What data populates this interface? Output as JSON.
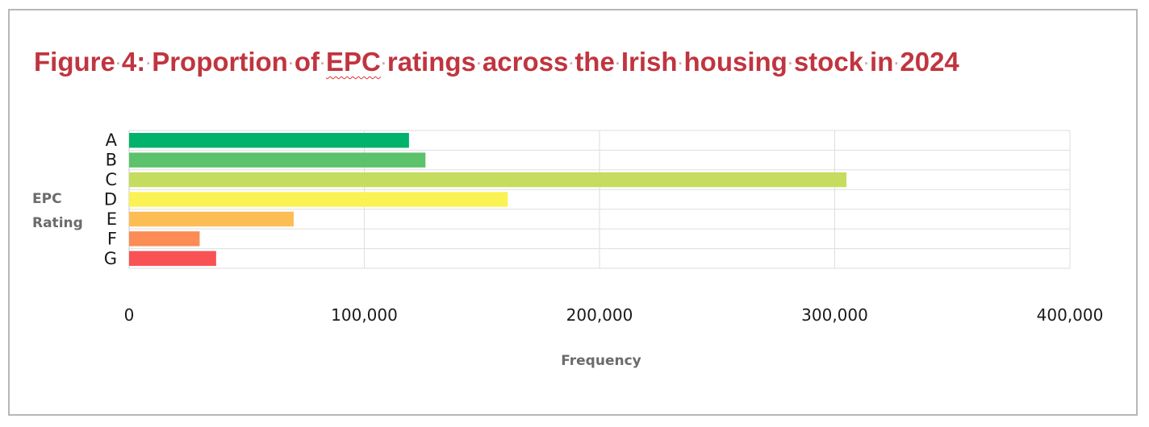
{
  "figure": {
    "title_words": [
      "Figure",
      "4:",
      "Proportion",
      "of",
      "EPC",
      "ratings",
      "across",
      "the",
      "Irish",
      "housing",
      "stock",
      "in",
      "2024"
    ]
  },
  "chart_data": {
    "type": "bar",
    "orientation": "horizontal",
    "title": "Figure 4: Proportion of EPC ratings across the Irish housing stock in 2024",
    "categories": [
      "A",
      "B",
      "C",
      "D",
      "E",
      "F",
      "G"
    ],
    "values": [
      119000,
      126000,
      305000,
      161000,
      70000,
      30000,
      37000
    ],
    "colors": [
      "#00b26b",
      "#5cc26c",
      "#c5dc5e",
      "#fbf253",
      "#fdbd55",
      "#fb8c55",
      "#f95254"
    ],
    "xlabel": "Frequency",
    "ylabel": [
      "EPC",
      "Rating"
    ],
    "xlim": [
      0,
      400000
    ],
    "xticks": [
      0,
      100000,
      200000,
      300000,
      400000
    ],
    "xtick_labels": [
      "0",
      "100,000",
      "200,000",
      "300,000",
      "400,000"
    ],
    "grid": true,
    "legend": "none"
  }
}
